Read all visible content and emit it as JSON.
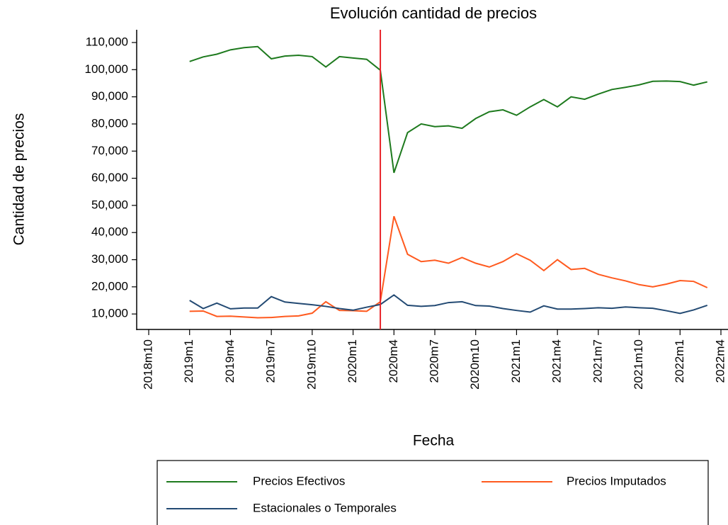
{
  "chart_data": {
    "type": "line",
    "title": "Evolución cantidad de precios",
    "x_label": "Fecha",
    "y_label": "Cantidad de precios",
    "categories": [
      "2018m10",
      null,
      null,
      "2019m1",
      null,
      null,
      "2019m4",
      null,
      null,
      "2019m7",
      null,
      null,
      "2019m10",
      null,
      null,
      "2020m1",
      null,
      null,
      "2020m4",
      null,
      null,
      "2020m7",
      null,
      null,
      "2020m10",
      null,
      null,
      "2021m1",
      null,
      null,
      "2021m4",
      null,
      null,
      "2021m7",
      null,
      null,
      "2021m10",
      null,
      null,
      "2022m1",
      null,
      null,
      "2022m4"
    ],
    "series": [
      {
        "name": "Precios Efectivos",
        "color": "#1e7a1e",
        "values": [
          null,
          null,
          null,
          103000,
          104700,
          105700,
          107300,
          108100,
          108500,
          104000,
          105000,
          105300,
          104800,
          101000,
          104800,
          104300,
          103800,
          99800,
          62000,
          76800,
          80000,
          79000,
          79300,
          78400,
          82000,
          84500,
          85200,
          83200,
          86300,
          89000,
          86300,
          90000,
          89100,
          91000,
          92700,
          93500,
          94400,
          95700,
          95800,
          95600,
          94300,
          95500,
          null
        ]
      },
      {
        "name": "Precios Imputados",
        "color": "#ff5a1f",
        "values": [
          null,
          null,
          null,
          11000,
          11100,
          9100,
          9200,
          8900,
          8600,
          8700,
          9100,
          9300,
          10300,
          14500,
          11300,
          11200,
          11000,
          14500,
          46000,
          32000,
          29300,
          29800,
          28700,
          30800,
          28700,
          27300,
          29300,
          32200,
          29800,
          26000,
          30000,
          26400,
          26800,
          24600,
          23300,
          22200,
          20800,
          20000,
          21000,
          22300,
          22000,
          19700,
          null
        ]
      },
      {
        "name": "Estacionales o Temporales",
        "color": "#234a73",
        "values": [
          null,
          null,
          null,
          15000,
          12000,
          14000,
          11900,
          12200,
          12200,
          16400,
          14400,
          13900,
          13400,
          12800,
          12000,
          11400,
          12500,
          13500,
          17000,
          13200,
          12800,
          13100,
          14200,
          14500,
          13100,
          12900,
          12000,
          11300,
          10700,
          13000,
          11800,
          11800,
          12000,
          12300,
          12100,
          12600,
          12300,
          12100,
          11200,
          10200,
          11500,
          13200,
          null
        ]
      }
    ],
    "ylim": [
      4300,
      114700
    ],
    "yticks": [
      {
        "value": 10000,
        "label": "10,000"
      },
      {
        "value": 20000,
        "label": "20,000"
      },
      {
        "value": 30000,
        "label": "30,000"
      },
      {
        "value": 40000,
        "label": "40,000"
      },
      {
        "value": 50000,
        "label": "50,000"
      },
      {
        "value": 60000,
        "label": "60,000"
      },
      {
        "value": 70000,
        "label": "70,000"
      },
      {
        "value": 80000,
        "label": "80,000"
      },
      {
        "value": 90000,
        "label": "90,000"
      },
      {
        "value": 100000,
        "label": "100,000"
      },
      {
        "value": 110000,
        "label": "110,000"
      }
    ],
    "vline": {
      "category_index": 17,
      "color": "#e8242a"
    },
    "grid": false
  }
}
